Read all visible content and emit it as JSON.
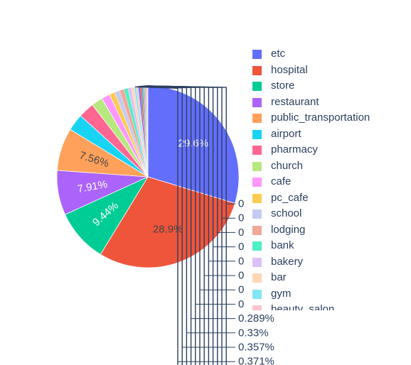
{
  "chart_data": {
    "type": "pie",
    "title": "",
    "colors": [
      "#636efa",
      "#ef553b",
      "#00cc96",
      "#ab63fa",
      "#ffa15a",
      "#19d3f3",
      "#ff6692",
      "#b6e880",
      "#ff97ff",
      "#fecb52",
      "#c6cbf1",
      "#f0a898",
      "#4ff0c6",
      "#ddc0f5",
      "#fed8b6",
      "#84e5f5",
      "#fbc4cf"
    ],
    "slices": [
      {
        "name": "etc",
        "value": 29.6,
        "label": "29.6%"
      },
      {
        "name": "hospital",
        "value": 28.9,
        "label": "28.9%"
      },
      {
        "name": "store",
        "value": 9.44,
        "label": "9.44%"
      },
      {
        "name": "restaurant",
        "value": 7.91,
        "label": "7.91%"
      },
      {
        "name": "public_transportation",
        "value": 7.56,
        "label": "7.56%"
      },
      {
        "name": "airport",
        "value": 3.0,
        "label": ""
      },
      {
        "name": "pharmacy",
        "value": 2.8,
        "label": ""
      },
      {
        "name": "church",
        "value": 2.0,
        "label": ""
      },
      {
        "name": "cafe",
        "value": 1.5,
        "label": ""
      },
      {
        "name": "pc_cafe",
        "value": 1.0,
        "label": ""
      },
      {
        "name": "school",
        "value": 0.9,
        "label": ""
      },
      {
        "name": "lodging",
        "value": 0.8,
        "label": ""
      },
      {
        "name": "bank",
        "value": 0.7,
        "label": ""
      },
      {
        "name": "bakery",
        "value": 0.6,
        "label": ""
      },
      {
        "name": "bar",
        "value": 0.5,
        "label": ""
      },
      {
        "name": "gym",
        "value": 0.371,
        "label": "0.371%"
      },
      {
        "name": "beauty_salon",
        "value": 0.357,
        "label": "0.357%"
      },
      {
        "name": "",
        "value": 0.33,
        "label": "0.33%"
      },
      {
        "name": "",
        "value": 0.289,
        "label": "0.289%"
      },
      {
        "name": "",
        "value": 0.2,
        "label": "0"
      },
      {
        "name": "",
        "value": 0.18,
        "label": "0"
      },
      {
        "name": "",
        "value": 0.16,
        "label": "0"
      },
      {
        "name": "",
        "value": 0.14,
        "label": "0"
      },
      {
        "name": "",
        "value": 0.12,
        "label": "0"
      },
      {
        "name": "",
        "value": 0.1,
        "label": "0"
      },
      {
        "name": "",
        "value": 0.09,
        "label": "0"
      },
      {
        "name": "",
        "value": 0.08,
        "label": "0"
      }
    ],
    "legend": [
      "etc",
      "hospital",
      "store",
      "restaurant",
      "public_transportation",
      "airport",
      "pharmacy",
      "church",
      "cafe",
      "pc_cafe",
      "school",
      "lodging",
      "bank",
      "bakery",
      "bar",
      "gym",
      "beauty_salon"
    ],
    "legend_position": "right"
  }
}
